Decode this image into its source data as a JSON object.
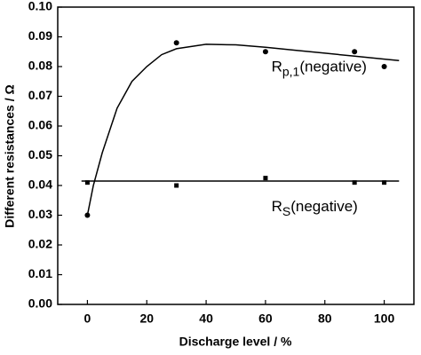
{
  "chart_data": {
    "type": "scatter",
    "x_label": "Discharge level / %",
    "y_label": "Different resistances / Ω",
    "xlim": [
      -10,
      110
    ],
    "ylim": [
      0,
      0.1
    ],
    "xticks": [
      0,
      20,
      40,
      60,
      80,
      100
    ],
    "yticks": [
      {
        "value": 0,
        "label": "0.00"
      },
      0.01,
      0.02,
      0.03,
      0.04,
      0.05,
      0.06,
      0.07,
      0.08,
      0.09,
      {
        "value": 0.1,
        "label": "0.10"
      }
    ],
    "series": [
      {
        "kind": "points",
        "marker": "circle",
        "color": "#000000",
        "x": [
          0,
          30,
          60,
          90,
          100
        ],
        "values": [
          0.03,
          0.088,
          0.085,
          0.085,
          0.08
        ]
      },
      {
        "kind": "points",
        "marker": "square",
        "color": "#000000",
        "x": [
          0,
          30,
          60,
          90,
          100
        ],
        "values": [
          0.041,
          0.04,
          0.0425,
          0.041,
          0.041
        ]
      },
      {
        "kind": "line",
        "color": "#000000",
        "x": [
          0,
          2,
          5,
          10,
          15,
          20,
          25,
          30,
          40,
          50,
          60,
          70,
          80,
          90,
          100,
          105
        ],
        "values": [
          0.03,
          0.04,
          0.051,
          0.066,
          0.075,
          0.08,
          0.084,
          0.086,
          0.0875,
          0.0873,
          0.0865,
          0.0855,
          0.0845,
          0.0835,
          0.0825,
          0.082
        ]
      },
      {
        "kind": "line",
        "color": "#000000",
        "x": [
          -2,
          105
        ],
        "values": [
          0.0415,
          0.0415
        ]
      }
    ],
    "annotations": [
      {
        "text": "R",
        "subscript": "p,1",
        "suffix": "(negative)",
        "x": 62,
        "y": 0.0795
      },
      {
        "text": "R",
        "subscript": "S",
        "suffix": "(negative)",
        "x": 62,
        "y": 0.0325
      }
    ]
  }
}
